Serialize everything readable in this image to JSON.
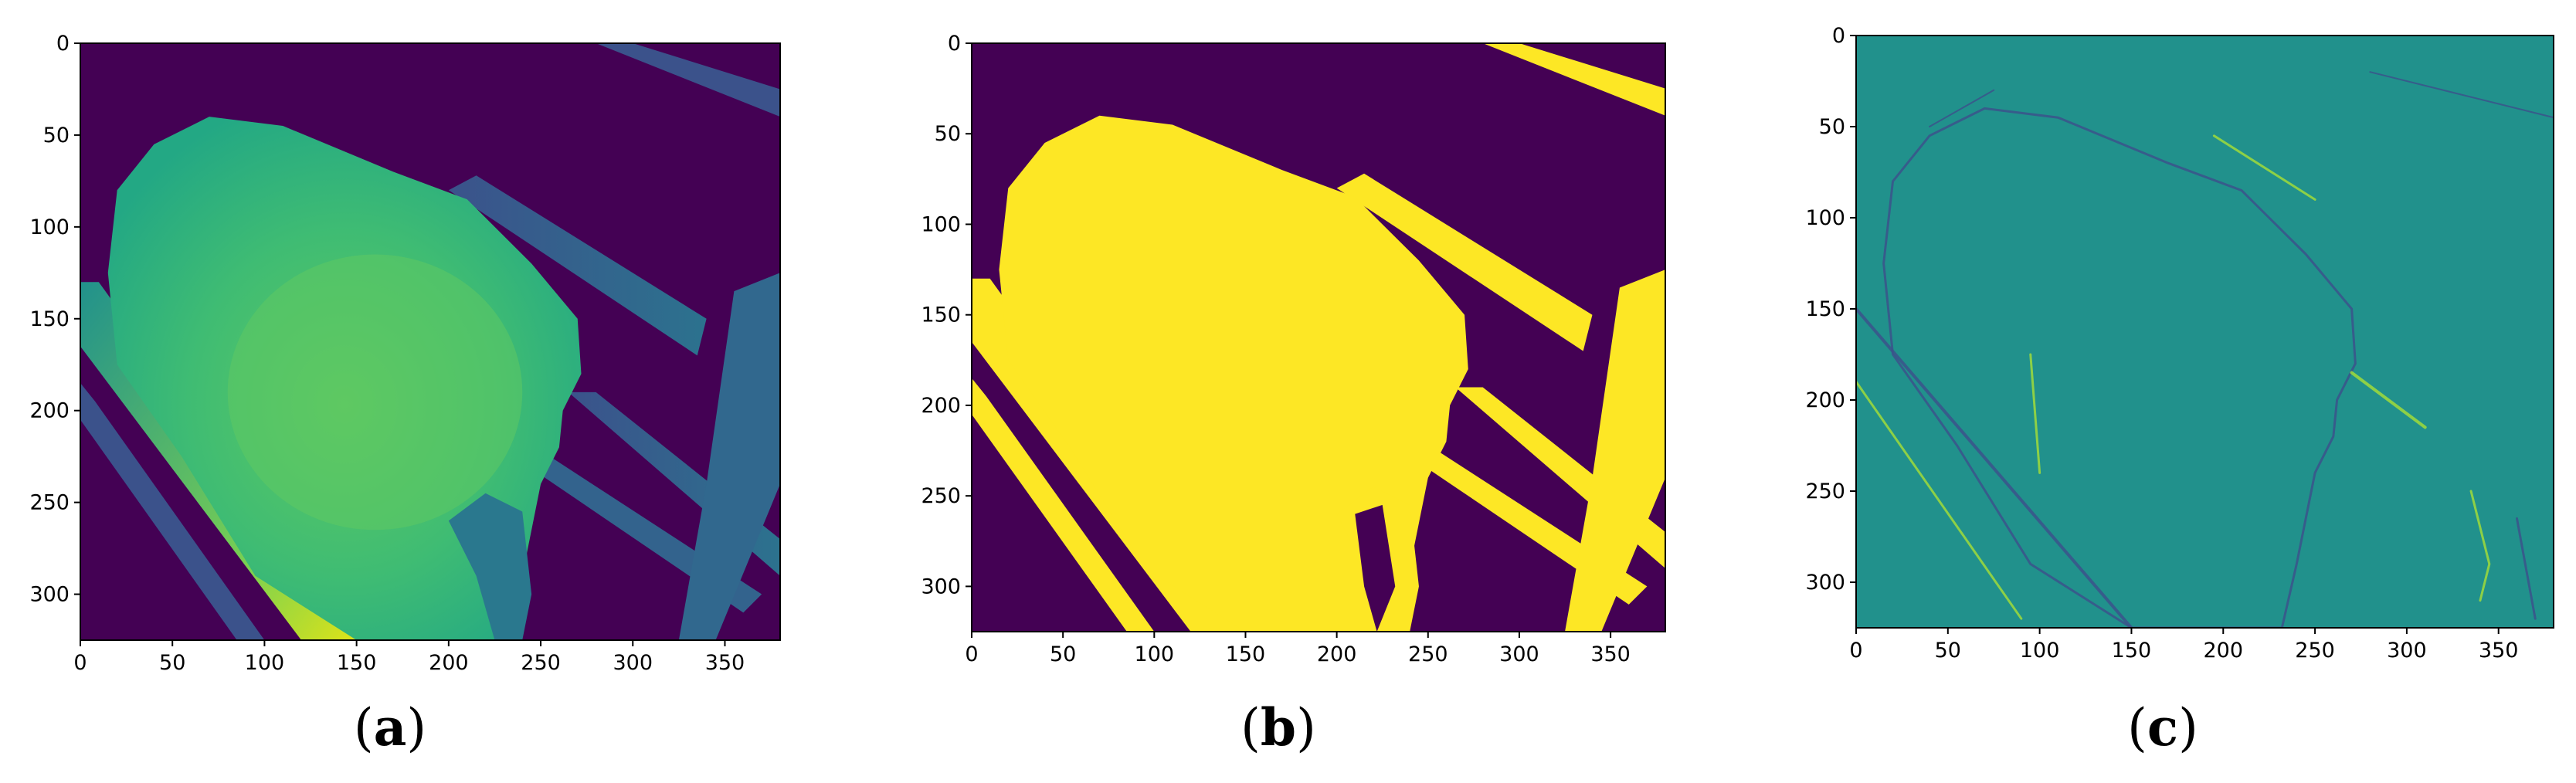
{
  "chart_data": [
    {
      "type": "heatmap",
      "caption_letter": "a",
      "title": "",
      "xlabel": "",
      "ylabel": "",
      "xlim": [
        0,
        380
      ],
      "ylim": [
        325,
        0
      ],
      "xticks": [
        "0",
        "50",
        "100",
        "150",
        "200",
        "250",
        "300",
        "350"
      ],
      "yticks": [
        "0",
        "50",
        "100",
        "150",
        "200",
        "250",
        "300"
      ],
      "colormap": "viridis",
      "colors": {
        "background": "#440154",
        "mid": "#2a9f89",
        "object": "#3fbc73",
        "high": "#e5e419"
      },
      "description_values": {
        "low": 0,
        "high": 1
      }
    },
    {
      "type": "heatmap",
      "caption_letter": "b",
      "title": "",
      "xlabel": "",
      "ylabel": "",
      "xlim": [
        0,
        380
      ],
      "ylim": [
        325,
        0
      ],
      "xticks": [
        "0",
        "50",
        "100",
        "150",
        "200",
        "250",
        "300",
        "350"
      ],
      "yticks": [
        "0",
        "50",
        "100",
        "150",
        "200",
        "250",
        "300"
      ],
      "colormap": "viridis (binary mask)",
      "colors": {
        "background": "#440154",
        "foreground": "#fde725"
      },
      "description_values": {
        "low": 0,
        "high": 1
      }
    },
    {
      "type": "heatmap",
      "caption_letter": "c",
      "title": "",
      "xlabel": "",
      "ylabel": "",
      "xlim": [
        0,
        380
      ],
      "ylim": [
        325,
        0
      ],
      "xticks": [
        "0",
        "50",
        "100",
        "150",
        "200",
        "250",
        "300",
        "350"
      ],
      "yticks": [
        "0",
        "50",
        "100",
        "150",
        "200",
        "250",
        "300"
      ],
      "colormap": "viridis (gradient)",
      "colors": {
        "background": "#21918c",
        "dark_edge": "#3b528b",
        "light_edge": "#a0da39"
      },
      "description_values": {
        "low": -1,
        "high": 1
      }
    }
  ]
}
